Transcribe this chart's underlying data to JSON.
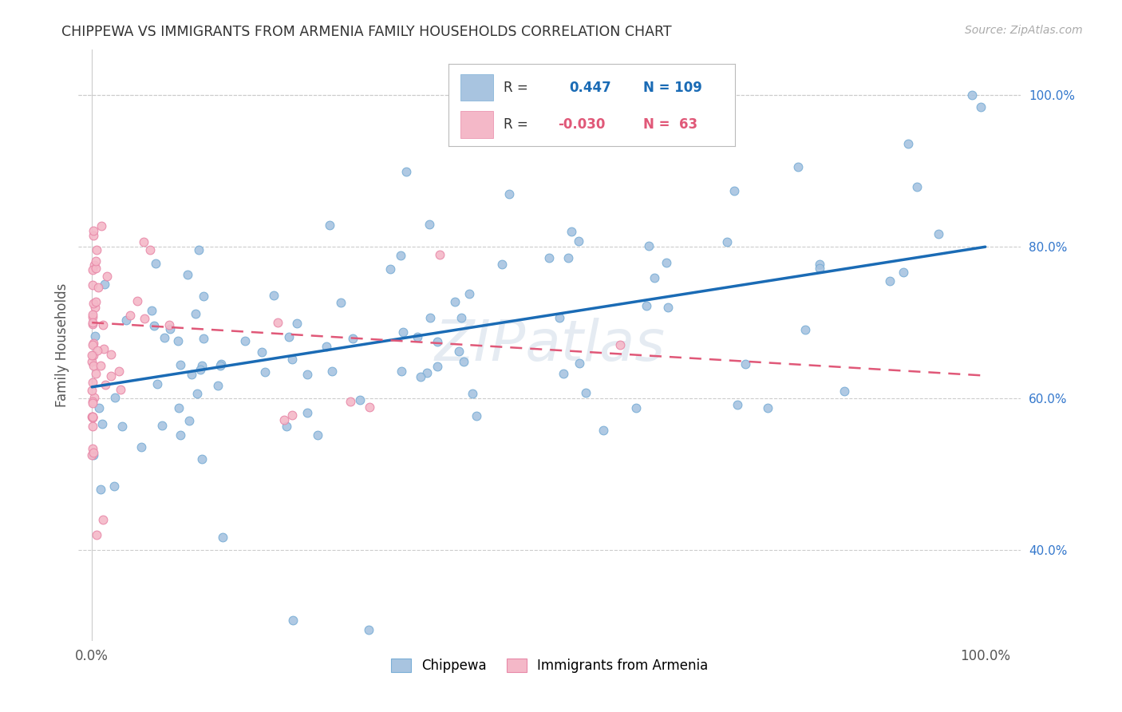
{
  "title": "CHIPPEWA VS IMMIGRANTS FROM ARMENIA FAMILY HOUSEHOLDS CORRELATION CHART",
  "source": "Source: ZipAtlas.com",
  "ylabel": "Family Households",
  "right_yticks": [
    "40.0%",
    "60.0%",
    "80.0%",
    "100.0%"
  ],
  "right_ytick_vals": [
    0.4,
    0.6,
    0.8,
    1.0
  ],
  "chippewa_color": "#a8c4e0",
  "chippewa_edge_color": "#7aaed6",
  "armenia_color": "#f4b8c8",
  "armenia_edge_color": "#e888a8",
  "chippewa_line_color": "#1a6bb5",
  "armenia_line_color": "#e05878",
  "watermark": "ZIPatlas",
  "ylim_low": 0.28,
  "ylim_high": 1.06,
  "xlim_low": -0.015,
  "xlim_high": 1.04,
  "chip_trend_x0": 0.0,
  "chip_trend_x1": 1.0,
  "chip_trend_y0": 0.615,
  "chip_trend_y1": 0.8,
  "arm_trend_x0": 0.0,
  "arm_trend_x1": 1.0,
  "arm_trend_y0": 0.7,
  "arm_trend_y1": 0.63
}
